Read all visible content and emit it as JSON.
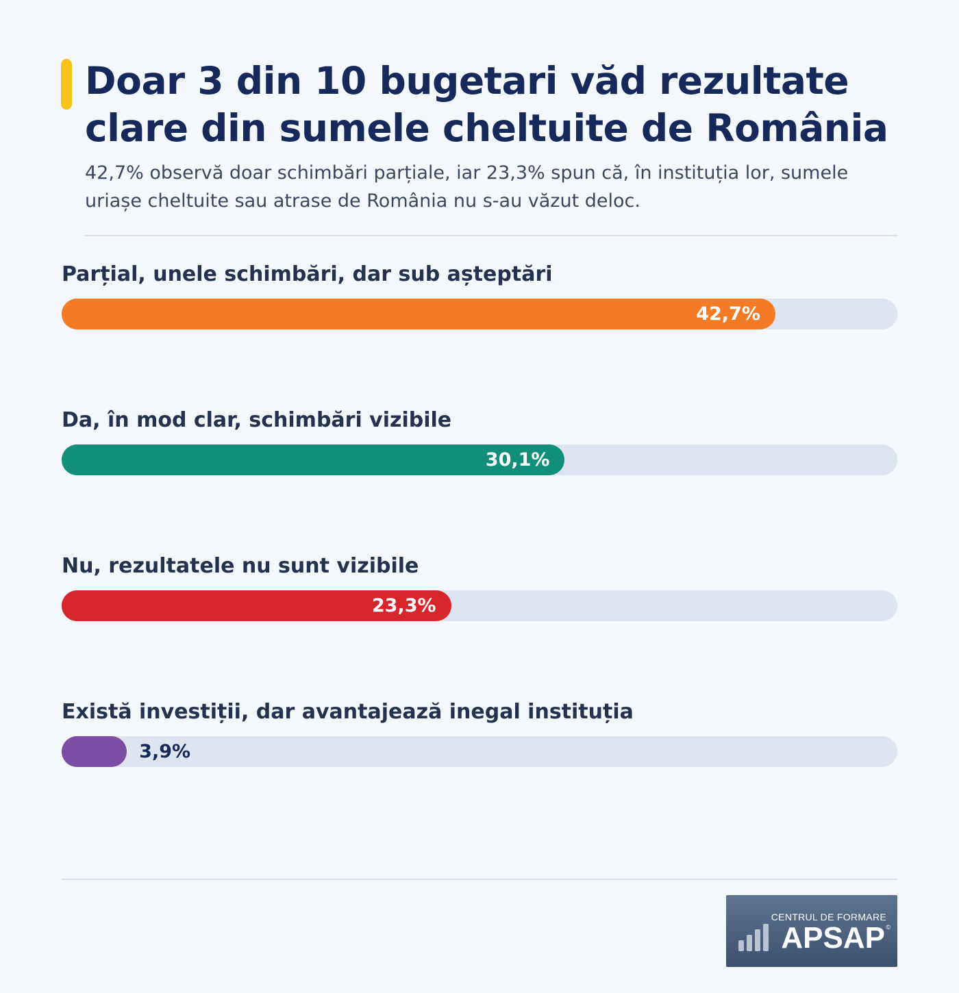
{
  "header": {
    "title": "Doar 3 din 10 bugetari văd rezultate clare din sumele cheltuite de România",
    "subtitle": "42,7% observă doar schimbări parțiale, iar 23,3% spun că, în instituția lor, sumele uriașe cheltuite sau atrase de România nu s-au văzut deloc.",
    "accent_color": "#f8c21a"
  },
  "chart_data": {
    "type": "bar",
    "orientation": "horizontal",
    "categories": [
      "Parțial, unele schimbări, dar sub așteptări",
      "Da, în mod clar, schimbări vizibile",
      "Nu, rezultatele nu sunt vizibile",
      "Există investiții, dar avantajează inegal instituția"
    ],
    "values": [
      42.7,
      30.1,
      23.3,
      3.9
    ],
    "value_labels": [
      "42,7%",
      "30,1%",
      "23,3%",
      "3,9%"
    ],
    "colors": [
      "#f47b24",
      "#128f79",
      "#d6262b",
      "#7b4ea3"
    ],
    "xlim": [
      0,
      50
    ],
    "grid": false,
    "legend": "none"
  },
  "logo": {
    "line1": "CENTRUL DE FORMARE",
    "line2": "APSAP",
    "mark": "©",
    "icon": "bar-chart-icon"
  }
}
